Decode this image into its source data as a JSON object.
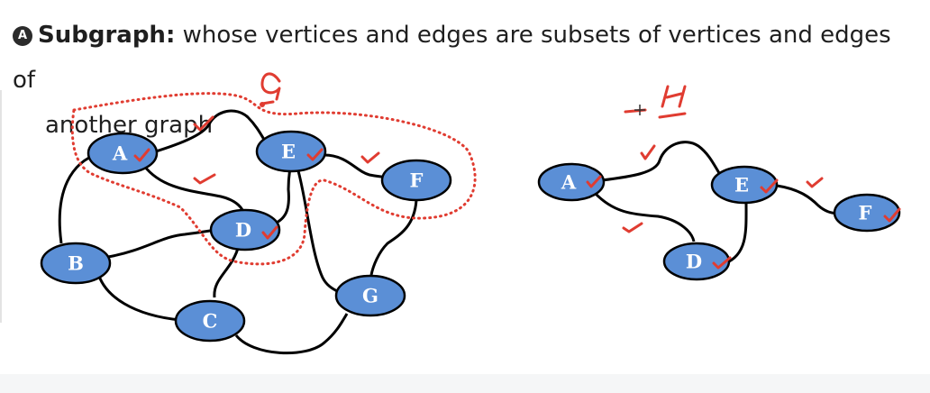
{
  "heading": {
    "badge": "A",
    "term": "Subgraph:",
    "line1": " whose vertices and edges are subsets of vertices and edges of",
    "line2": "another graph"
  },
  "graph_g": {
    "nodes": [
      "A",
      "B",
      "C",
      "D",
      "E",
      "F",
      "G"
    ]
  },
  "graph_h": {
    "nodes": [
      "A",
      "D",
      "E",
      "F"
    ]
  },
  "colors": {
    "node_fill": "#5b8fd6",
    "ink": "#e03c31",
    "edge": "#000000"
  }
}
